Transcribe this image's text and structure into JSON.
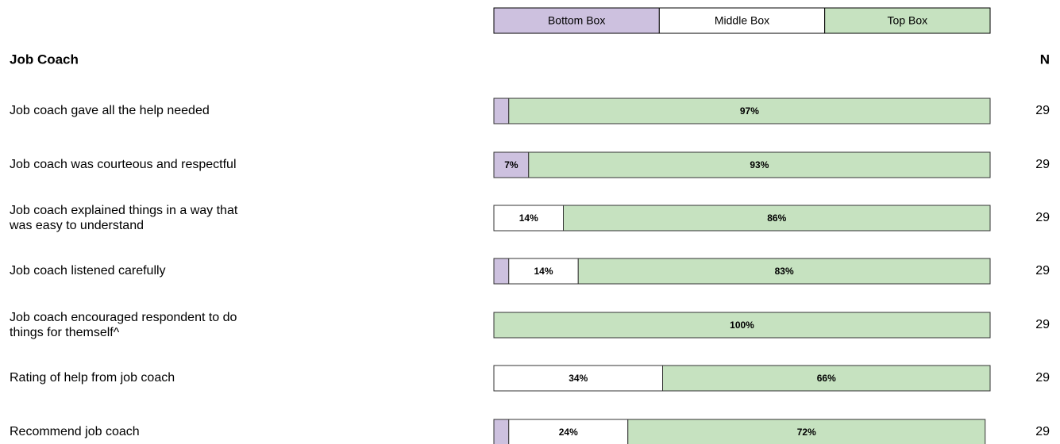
{
  "chart_data": {
    "type": "stacked-bar-horizontal",
    "title": "Job Coach",
    "n_header": "N",
    "categories": [
      "Job coach gave all the help needed",
      "Job coach was courteous and respectful",
      "Job coach explained things in a way that\nwas easy to understand",
      "Job coach listened carefully",
      "Job coach encouraged respondent to do\nthings for themself^",
      "Rating of help from job coach",
      "Recommend job coach"
    ],
    "xlim": [
      0,
      100
    ],
    "series": [
      {
        "name": "Bottom Box",
        "color": "#cdc1df",
        "values": [
          3,
          7,
          0,
          3,
          0,
          0,
          3
        ],
        "value_labels": [
          null,
          "7%",
          null,
          null,
          null,
          null,
          null
        ]
      },
      {
        "name": "Middle Box",
        "color": "#ffffff",
        "values": [
          0,
          0,
          14,
          14,
          0,
          34,
          24
        ],
        "value_labels": [
          null,
          null,
          "14%",
          "14%",
          null,
          "34%",
          "24%"
        ]
      },
      {
        "name": "Top Box",
        "color": "#c6e2c0",
        "values": [
          97,
          93,
          86,
          83,
          100,
          66,
          72
        ],
        "value_labels": [
          "97%",
          "93%",
          "86%",
          "83%",
          "100%",
          "66%",
          "72%"
        ]
      }
    ],
    "n": [
      29,
      29,
      29,
      29,
      29,
      29,
      29
    ]
  }
}
